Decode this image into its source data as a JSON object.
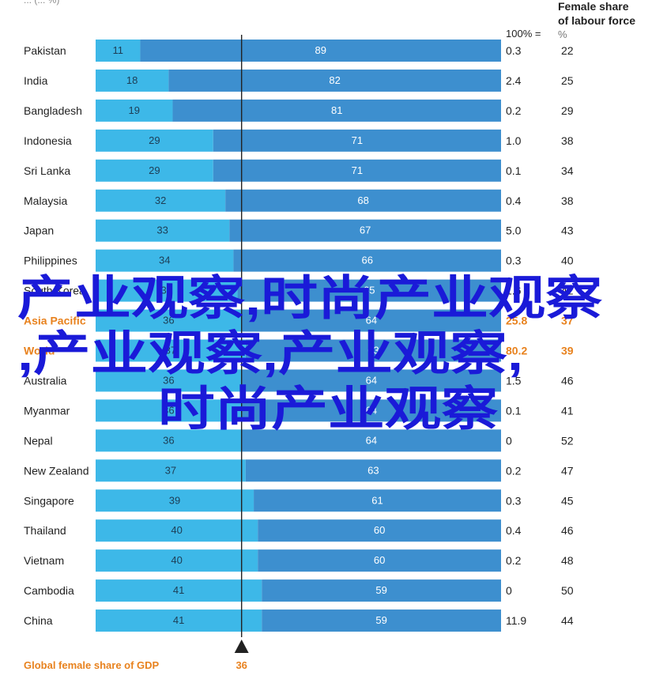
{
  "header": {
    "top_fragment": "... (... %)",
    "gdp_value_label": "100% =",
    "labour_title_line1": "Female share",
    "labour_title_line2": "of labour force",
    "labour_unit": "%"
  },
  "footer": {
    "marker_label": "Global female share of GDP",
    "marker_value": "36"
  },
  "watermark": {
    "line1": "产业观察,时尚产业观察",
    "line2": ",产业观察,产业观察,",
    "line3": "时尚产业观察",
    "color": "#1a1ad8"
  },
  "colors": {
    "female_bar": "#3db8e8",
    "other_bar": "#3d8fcf",
    "marker_line": "#222222",
    "highlight_text": "#e8821e"
  },
  "chart_data": {
    "type": "bar",
    "orientation": "horizontal",
    "stacked": true,
    "xlim": [
      0,
      100
    ],
    "reference_line": 36,
    "categories": [
      "Pakistan",
      "India",
      "Bangladesh",
      "Indonesia",
      "Sri Lanka",
      "Malaysia",
      "Japan",
      "Philippines",
      "South Korea",
      "Asia Pacific",
      "World",
      "Australia",
      "Myanmar",
      "Nepal",
      "New Zealand",
      "Singapore",
      "Thailand",
      "Vietnam",
      "Cambodia",
      "China"
    ],
    "highlight": [
      "Asia Pacific",
      "World"
    ],
    "series": [
      {
        "values": [
          11,
          18,
          19,
          29,
          29,
          32,
          33,
          34,
          35,
          36,
          37,
          36,
          36,
          36,
          37,
          39,
          40,
          40,
          41,
          41
        ]
      },
      {
        "values": [
          89,
          82,
          81,
          71,
          71,
          68,
          67,
          66,
          65,
          64,
          63,
          64,
          64,
          64,
          63,
          61,
          60,
          60,
          59,
          59
        ]
      }
    ],
    "gdp_total": [
      "0.3",
      "2.4",
      "0.2",
      "1.0",
      "0.1",
      "0.4",
      "5.0",
      "0.3",
      "1.6",
      "25.8",
      "80.2",
      "1.5",
      "0.1",
      "0",
      "0.2",
      "0.3",
      "0.4",
      "0.2",
      "0",
      "11.9"
    ],
    "labour_share": [
      22,
      25,
      29,
      38,
      34,
      38,
      43,
      40,
      42,
      37,
      39,
      46,
      41,
      52,
      47,
      45,
      46,
      48,
      50,
      44
    ]
  }
}
